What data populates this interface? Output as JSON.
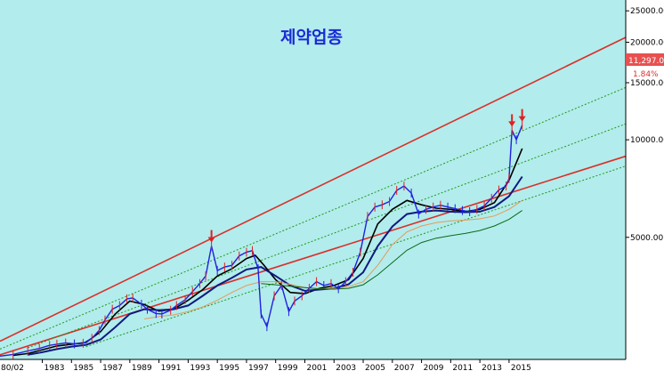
{
  "chart_data": {
    "type": "line",
    "title": "제약업종",
    "y_scale": "log",
    "y_axis_position": "right",
    "ylim": [
      2100,
      27000
    ],
    "y_ticks": [
      {
        "value": 25000,
        "label": "25000.00"
      },
      {
        "value": 20000,
        "label": "20000.00"
      },
      {
        "value": 15000,
        "label": "15000.00"
      },
      {
        "value": 10000,
        "label": "10000.00"
      },
      {
        "value": 5000,
        "label": "5000.00"
      }
    ],
    "x_first_label": "80/02",
    "x_ticks": [
      "1983",
      "1985",
      "1987",
      "1989",
      "1991",
      "1993",
      "1995",
      "1997",
      "1999",
      "2001",
      "2003",
      "2005",
      "2007",
      "2009",
      "2011",
      "2013",
      "2015"
    ],
    "xlim": [
      1980.1,
      2023.0
    ],
    "last_price": "11,297.02",
    "last_change": "1.84%",
    "background_color": "#b3ecec",
    "axis_background": "#ffffff",
    "price_series_color": "#2020e0",
    "price_spike_color": "#e02020",
    "ma_colors": [
      "#000000",
      "#101a80",
      "#e69a5a",
      "#0a6a1a"
    ],
    "channel_color": "#d9302a",
    "mid_channel_color": "#1e9a1e",
    "marker_color": "#e02020",
    "markers": [
      {
        "x": 1994.6,
        "y": 4700
      },
      {
        "x": 2015.2,
        "y": 10700
      },
      {
        "x": 2015.9,
        "y": 11100
      }
    ],
    "channel_lines": [
      {
        "style": "solid",
        "color": "#d9302a",
        "points": [
          [
            1980.1,
            2390
          ],
          [
            2023.0,
            20700
          ]
        ]
      },
      {
        "style": "solid",
        "color": "#d9302a",
        "points": [
          [
            1980.1,
            2170
          ],
          [
            2023.0,
            8900
          ]
        ]
      },
      {
        "style": "dotted",
        "color": "#1e9a1e",
        "points": [
          [
            1980.1,
            2260
          ],
          [
            2023.0,
            14500
          ]
        ]
      },
      {
        "style": "dotted",
        "color": "#1e9a1e",
        "points": [
          [
            1982.0,
            2280
          ],
          [
            2023.0,
            11200
          ]
        ]
      },
      {
        "style": "dotted",
        "color": "#1e9a1e",
        "points": [
          [
            1986.0,
            2300
          ],
          [
            2023.0,
            8300
          ]
        ]
      }
    ],
    "series": [
      {
        "name": "",
        "x": [
          1980.1,
          1981.0,
          1982.0,
          1982.8,
          1983.5,
          1984.0,
          1984.6,
          1985.2,
          1985.8,
          1986.4,
          1986.9,
          1987.3,
          1987.8,
          1988.3,
          1988.8,
          1989.2,
          1989.8,
          1990.2,
          1990.8,
          1991.2,
          1991.8,
          1992.2,
          1992.8,
          1993.3,
          1993.8,
          1994.2,
          1994.6,
          1995.0,
          1995.5,
          1996.0,
          1996.5,
          1997.0,
          1997.4,
          1997.8,
          1998.0,
          1998.4,
          1998.9,
          1999.4,
          1999.9,
          2000.3,
          2000.8,
          2001.3,
          2001.8,
          2002.3,
          2002.8,
          2003.3,
          2003.8,
          2004.3,
          2004.8,
          2005.3,
          2005.8,
          2006.3,
          2006.8,
          2007.3,
          2007.8,
          2008.3,
          2008.8,
          2009.3,
          2009.8,
          2010.3,
          2010.8,
          2011.3,
          2011.8,
          2012.3,
          2012.8,
          2013.3,
          2013.8,
          2014.3,
          2014.8,
          2015.0,
          2015.2,
          2015.5,
          2015.9
        ],
        "values": [
          2150,
          2175,
          2230,
          2270,
          2320,
          2340,
          2360,
          2345,
          2355,
          2440,
          2580,
          2780,
          3000,
          3080,
          3230,
          3250,
          3110,
          3000,
          2910,
          2900,
          2980,
          3080,
          3210,
          3400,
          3600,
          3800,
          4700,
          3950,
          4050,
          4100,
          4380,
          4500,
          4550,
          4000,
          2900,
          2650,
          3300,
          3550,
          2950,
          3180,
          3300,
          3480,
          3650,
          3550,
          3600,
          3470,
          3650,
          3900,
          4500,
          5800,
          6200,
          6300,
          6450,
          6980,
          7200,
          6850,
          5900,
          6100,
          6200,
          6280,
          6200,
          6130,
          6050,
          6000,
          6100,
          6250,
          6600,
          7000,
          7200,
          7600,
          10700,
          10000,
          11100
        ]
      },
      {
        "name": "",
        "x": [
          1981.0,
          1982.0,
          1983.0,
          1984.0,
          1985.0,
          1986.0,
          1987.0,
          1988.0,
          1989.0,
          1990.0,
          1991.0,
          1992.0,
          1993.0,
          1994.0,
          1995.0,
          1996.0,
          1997.0,
          1997.6,
          1998.2,
          1999.0,
          2000.0,
          2001.0,
          2002.0,
          2003.0,
          2004.0,
          2005.0,
          2006.0,
          2007.0,
          2008.0,
          2009.0,
          2010.0,
          2011.0,
          2012.0,
          2013.0,
          2014.0,
          2015.0,
          2015.9
        ],
        "values": [
          2160,
          2190,
          2250,
          2310,
          2340,
          2370,
          2560,
          2900,
          3180,
          3100,
          2960,
          3000,
          3200,
          3450,
          3800,
          4000,
          4300,
          4400,
          4100,
          3700,
          3380,
          3350,
          3480,
          3550,
          3700,
          4300,
          5500,
          6100,
          6500,
          6300,
          6150,
          6100,
          6000,
          6100,
          6400,
          7500,
          9400
        ]
      },
      {
        "name": "",
        "x": [
          1982.0,
          1983.0,
          1984.0,
          1985.0,
          1986.0,
          1987.0,
          1988.0,
          1989.0,
          1990.0,
          1991.0,
          1992.0,
          1993.0,
          1994.0,
          1995.0,
          1996.0,
          1997.0,
          1998.0,
          1999.0,
          2000.0,
          2001.0,
          2002.0,
          2003.0,
          2004.0,
          2005.0,
          2006.0,
          2007.0,
          2008.0,
          2009.0,
          2010.0,
          2011.0,
          2012.0,
          2013.0,
          2014.0,
          2015.0,
          2015.9
        ],
        "values": [
          2170,
          2210,
          2260,
          2300,
          2330,
          2420,
          2640,
          2900,
          3000,
          2980,
          3000,
          3080,
          3300,
          3550,
          3750,
          3980,
          4050,
          3800,
          3550,
          3420,
          3450,
          3480,
          3580,
          3900,
          4700,
          5400,
          5900,
          6000,
          6050,
          6000,
          5980,
          6000,
          6200,
          6700,
          7700
        ]
      },
      {
        "name": "",
        "x": [
          1990.0,
          1991.0,
          1992.0,
          1993.0,
          1994.0,
          1995.0,
          1996.0,
          1997.0,
          1998.0,
          1999.0,
          2000.0,
          2001.0,
          2002.0,
          2003.0,
          2004.0,
          2005.0,
          2006.0,
          2007.0,
          2008.0,
          2009.0,
          2010.0,
          2011.0,
          2012.0,
          2013.0,
          2014.0,
          2015.0,
          2015.9
        ],
        "values": [
          2800,
          2850,
          2880,
          2950,
          3050,
          3200,
          3380,
          3550,
          3650,
          3650,
          3580,
          3500,
          3470,
          3480,
          3520,
          3650,
          4100,
          4750,
          5200,
          5420,
          5550,
          5620,
          5650,
          5700,
          5820,
          6100,
          6500
        ]
      },
      {
        "name": "",
        "x": [
          1998.0,
          1999.0,
          2000.0,
          2001.0,
          2002.0,
          2003.0,
          2004.0,
          2005.0,
          2006.0,
          2007.0,
          2008.0,
          2009.0,
          2010.0,
          2011.0,
          2012.0,
          2013.0,
          2014.0,
          2015.0,
          2015.9
        ],
        "values": [
          3600,
          3570,
          3530,
          3500,
          3470,
          3460,
          3480,
          3570,
          3830,
          4180,
          4560,
          4820,
          4970,
          5060,
          5140,
          5250,
          5420,
          5680,
          6050
        ]
      }
    ]
  }
}
